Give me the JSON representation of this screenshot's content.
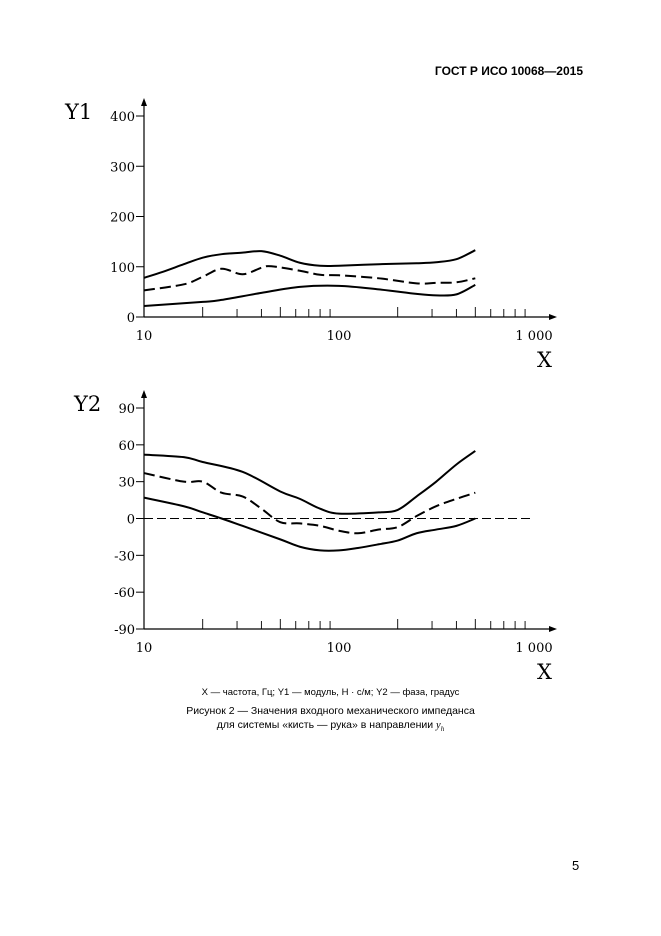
{
  "header": "ГОСТ Р ИСО 10068—2015",
  "page_number": "5",
  "caption": {
    "legend": "X — частота, Гц; Y1 — модуль, Н · с/м; Y2 — фаза, градус",
    "title_line1": "Рисунок 2 — Значения входного механического импеданса",
    "title_line2": "для системы «кисть — рука» в направлении",
    "title_symbol": "y",
    "title_subscript": "h"
  },
  "chart_data": [
    {
      "type": "line",
      "xscale": "log",
      "xlim": [
        10,
        1000
      ],
      "ylim": [
        0,
        400
      ],
      "xlabel": "X",
      "ylabel": "Y1",
      "grid": false,
      "xticks": [
        10,
        100,
        1000
      ],
      "xtick_labels": [
        "10",
        "100",
        "1 000"
      ],
      "yticks": [
        0,
        100,
        200,
        300,
        400
      ],
      "ytick_labels": [
        "0",
        "100",
        "200",
        "300",
        "400"
      ],
      "series": [
        {
          "style": "solid",
          "x": [
            10,
            12.5,
            16,
            20,
            25,
            32,
            40,
            50,
            63,
            80,
            100,
            160,
            250,
            315,
            400,
            500
          ],
          "y": [
            78,
            90,
            105,
            118,
            125,
            128,
            131,
            122,
            108,
            102,
            102,
            105,
            107,
            109,
            115,
            133
          ]
        },
        {
          "style": "dashed",
          "x": [
            10,
            16,
            20,
            25,
            32,
            40,
            45,
            63,
            80,
            100,
            160,
            250,
            315,
            400,
            500
          ],
          "y": [
            53,
            65,
            80,
            96,
            85,
            98,
            101,
            92,
            84,
            83,
            77,
            67,
            68,
            69,
            77
          ]
        },
        {
          "style": "solid",
          "x": [
            10,
            20,
            25,
            40,
            63,
            100,
            160,
            250,
            315,
            400,
            500
          ],
          "y": [
            22,
            30,
            34,
            48,
            60,
            62,
            55,
            46,
            43,
            45,
            64
          ]
        }
      ]
    },
    {
      "type": "line",
      "xscale": "log",
      "xlim": [
        10,
        1000
      ],
      "ylim": [
        -90,
        90
      ],
      "xlabel": "X",
      "ylabel": "Y2",
      "grid": false,
      "xticks": [
        10,
        100,
        1000
      ],
      "xtick_labels": [
        "10",
        "100",
        "1 000"
      ],
      "yticks": [
        90,
        60,
        30,
        0,
        -30,
        -60,
        -90
      ],
      "ytick_labels": [
        "90",
        "60",
        "30",
        "0",
        "-30",
        "-60",
        "-90"
      ],
      "reference_line": {
        "y": 0,
        "style": "dashed"
      },
      "series": [
        {
          "style": "solid",
          "x": [
            10,
            16,
            20,
            32,
            50,
            63,
            80,
            100,
            160,
            200,
            250,
            315,
            400,
            500
          ],
          "y": [
            52,
            50,
            46,
            38,
            22,
            16,
            8,
            4,
            5,
            7,
            18,
            30,
            44,
            55
          ]
        },
        {
          "style": "dashed",
          "x": [
            10,
            16,
            20,
            25,
            32,
            40,
            50,
            63,
            80,
            100,
            125,
            160,
            200,
            250,
            315,
            400,
            500
          ],
          "y": [
            37,
            30,
            30,
            21,
            18,
            8,
            -3,
            -4,
            -6,
            -10,
            -12,
            -9,
            -7,
            2,
            10,
            16,
            21
          ]
        },
        {
          "style": "solid",
          "x": [
            10,
            16,
            20,
            25,
            32,
            50,
            63,
            80,
            100,
            125,
            160,
            200,
            250,
            315,
            400,
            500
          ],
          "y": [
            17,
            10,
            5,
            0,
            -6,
            -17,
            -23,
            -26,
            -26,
            -24,
            -21,
            -18,
            -12,
            -9,
            -6,
            0
          ]
        }
      ]
    }
  ]
}
